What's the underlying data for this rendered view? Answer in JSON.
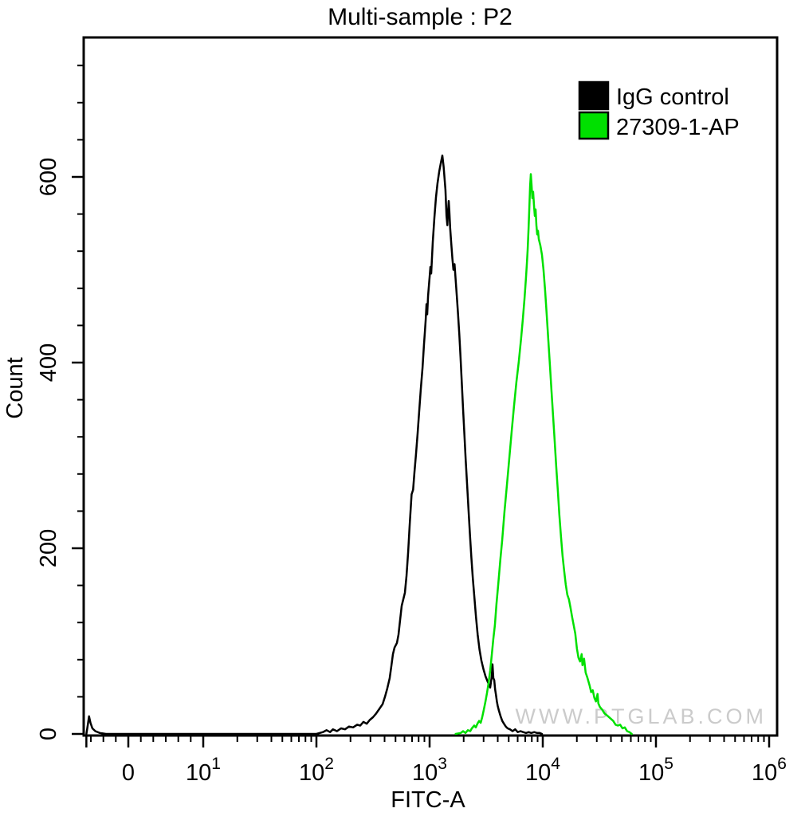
{
  "watermark": "WWW.PTGLAB.COM",
  "chart_data": {
    "type": "line",
    "subtype": "flow-cytometry-histogram-overlay",
    "title": "Multi-sample : P2",
    "xlabel": "FITC-A",
    "ylabel": "Count",
    "x_scale": "logicle (linear near 0, logarithmic 10 to 10^6)",
    "ylim": [
      0,
      750
    ],
    "y_major_ticks": [
      0,
      200,
      400,
      600
    ],
    "y_minor_step": 40,
    "x_major_ticks": [
      {
        "value": -5.6,
        "label": ""
      },
      {
        "value": 0,
        "label": "0"
      },
      {
        "value": 10,
        "base": "10",
        "exp": "1"
      },
      {
        "value": 100,
        "base": "10",
        "exp": "2"
      },
      {
        "value": 1000,
        "base": "10",
        "exp": "3"
      },
      {
        "value": 10000,
        "base": "10",
        "exp": "4"
      },
      {
        "value": 100000,
        "base": "10",
        "exp": "5"
      },
      {
        "value": 1000000,
        "base": "10",
        "exp": "6"
      }
    ],
    "legend_position": "top-right",
    "grid": false,
    "series": [
      {
        "name": "IgG control",
        "color": "#000000",
        "peak_x": 1300,
        "peak_count": 623,
        "points": [
          [
            -5.6,
            0
          ],
          [
            -5.4,
            10
          ],
          [
            -5.25,
            19
          ],
          [
            -5.05,
            12
          ],
          [
            -4.8,
            6
          ],
          [
            -4.4,
            3
          ],
          [
            -3.8,
            1
          ],
          [
            -3.0,
            0
          ],
          [
            0,
            0
          ],
          [
            50,
            0
          ],
          [
            100,
            0
          ],
          [
            114,
            2
          ],
          [
            123,
            4
          ],
          [
            132,
            2
          ],
          [
            140,
            5
          ],
          [
            152,
            3
          ],
          [
            165,
            6
          ],
          [
            179,
            5
          ],
          [
            194,
            8
          ],
          [
            211,
            7
          ],
          [
            229,
            10
          ],
          [
            244,
            9
          ],
          [
            260,
            13
          ],
          [
            278,
            11
          ],
          [
            296,
            15
          ],
          [
            316,
            18
          ],
          [
            337,
            22
          ],
          [
            360,
            27
          ],
          [
            384,
            32
          ],
          [
            403,
            40
          ],
          [
            423,
            49
          ],
          [
            444,
            60
          ],
          [
            459,
            73
          ],
          [
            474,
            86
          ],
          [
            490,
            93
          ],
          [
            514,
            98
          ],
          [
            531,
            107
          ],
          [
            548,
            122
          ],
          [
            567,
            138
          ],
          [
            586,
            145
          ],
          [
            605,
            152
          ],
          [
            625,
            170
          ],
          [
            646,
            196
          ],
          [
            667,
            225
          ],
          [
            693,
            258
          ],
          [
            715,
            263
          ],
          [
            735,
            282
          ],
          [
            759,
            302
          ],
          [
            784,
            324
          ],
          [
            809,
            347
          ],
          [
            837,
            372
          ],
          [
            865,
            394
          ],
          [
            893,
            420
          ],
          [
            908,
            432
          ],
          [
            923,
            446
          ],
          [
            938,
            463
          ],
          [
            953,
            452
          ],
          [
            969,
            472
          ],
          [
            1000,
            492
          ],
          [
            1016,
            503
          ],
          [
            1033,
            496
          ],
          [
            1067,
            530
          ],
          [
            1102,
            556
          ],
          [
            1139,
            578
          ],
          [
            1175,
            593
          ],
          [
            1216,
            606
          ],
          [
            1256,
            615
          ],
          [
            1297,
            623
          ],
          [
            1330,
            611
          ],
          [
            1380,
            586
          ],
          [
            1410,
            558
          ],
          [
            1435,
            548
          ],
          [
            1455,
            562
          ],
          [
            1475,
            574
          ],
          [
            1495,
            563
          ],
          [
            1520,
            545
          ],
          [
            1555,
            528
          ],
          [
            1590,
            512
          ],
          [
            1625,
            500
          ],
          [
            1660,
            506
          ],
          [
            1700,
            489
          ],
          [
            1740,
            471
          ],
          [
            1785,
            452
          ],
          [
            1830,
            430
          ],
          [
            1875,
            406
          ],
          [
            1925,
            378
          ],
          [
            1975,
            350
          ],
          [
            2030,
            322
          ],
          [
            2085,
            295
          ],
          [
            2145,
            268
          ],
          [
            2205,
            242
          ],
          [
            2270,
            215
          ],
          [
            2340,
            190
          ],
          [
            2410,
            168
          ],
          [
            2490,
            146
          ],
          [
            2570,
            126
          ],
          [
            2660,
            107
          ],
          [
            2760,
            91
          ],
          [
            2870,
            79
          ],
          [
            2990,
            70
          ],
          [
            3120,
            62
          ],
          [
            3266,
            56
          ],
          [
            3428,
            50
          ],
          [
            3540,
            62
          ],
          [
            3597,
            75
          ],
          [
            3660,
            60
          ],
          [
            3725,
            58
          ],
          [
            3790,
            48
          ],
          [
            3860,
            42
          ],
          [
            3930,
            35
          ],
          [
            4000,
            30
          ],
          [
            4100,
            25
          ],
          [
            4240,
            19
          ],
          [
            4390,
            14
          ],
          [
            4540,
            11
          ],
          [
            4710,
            8
          ],
          [
            4890,
            6
          ],
          [
            5130,
            5
          ],
          [
            5410,
            3
          ],
          [
            5710,
            5
          ],
          [
            6010,
            2
          ],
          [
            6360,
            3
          ],
          [
            6710,
            2
          ],
          [
            7110,
            1
          ],
          [
            7510,
            2
          ],
          [
            7910,
            1
          ],
          [
            8410,
            2
          ],
          [
            8910,
            1
          ],
          [
            9410,
            1
          ],
          [
            9840,
            0
          ]
        ]
      },
      {
        "name": "27309-1-AP",
        "color": "#00E000",
        "peak_x": 7800,
        "peak_count": 603,
        "points": [
          [
            1700,
            0
          ],
          [
            1884,
            1
          ],
          [
            1975,
            3
          ],
          [
            2075,
            1
          ],
          [
            2178,
            4
          ],
          [
            2286,
            3
          ],
          [
            2360,
            6
          ],
          [
            2478,
            9
          ],
          [
            2560,
            7
          ],
          [
            2647,
            11
          ],
          [
            2736,
            14
          ],
          [
            2829,
            12
          ],
          [
            2917,
            18
          ],
          [
            3014,
            26
          ],
          [
            3115,
            35
          ],
          [
            3215,
            44
          ],
          [
            3321,
            55
          ],
          [
            3428,
            68
          ],
          [
            3540,
            85
          ],
          [
            3655,
            102
          ],
          [
            3772,
            117
          ],
          [
            3896,
            140
          ],
          [
            4036,
            160
          ],
          [
            4236,
            190
          ],
          [
            4375,
            208
          ],
          [
            4590,
            240
          ],
          [
            4820,
            268
          ],
          [
            5050,
            296
          ],
          [
            5310,
            326
          ],
          [
            5570,
            353
          ],
          [
            5850,
            379
          ],
          [
            6140,
            401
          ],
          [
            6430,
            426
          ],
          [
            6660,
            446
          ],
          [
            6890,
            468
          ],
          [
            7100,
            491
          ],
          [
            7230,
            506
          ],
          [
            7350,
            521
          ],
          [
            7480,
            543
          ],
          [
            7600,
            566
          ],
          [
            7730,
            590
          ],
          [
            7835,
            603
          ],
          [
            7960,
            592
          ],
          [
            8090,
            577
          ],
          [
            8220,
            584
          ],
          [
            8375,
            568
          ],
          [
            8500,
            558
          ],
          [
            8640,
            565
          ],
          [
            8790,
            548
          ],
          [
            8930,
            538
          ],
          [
            9080,
            542
          ],
          [
            9220,
            533
          ],
          [
            9520,
            526
          ],
          [
            9840,
            516
          ],
          [
            10150,
            500
          ],
          [
            10480,
            478
          ],
          [
            10830,
            452
          ],
          [
            11180,
            425
          ],
          [
            11550,
            398
          ],
          [
            11930,
            370
          ],
          [
            12320,
            343
          ],
          [
            12730,
            316
          ],
          [
            13140,
            289
          ],
          [
            13580,
            262
          ],
          [
            14020,
            236
          ],
          [
            14490,
            212
          ],
          [
            14960,
            192
          ],
          [
            15450,
            176
          ],
          [
            15960,
            161
          ],
          [
            16490,
            150
          ],
          [
            17030,
            145
          ],
          [
            17590,
            136
          ],
          [
            18170,
            126
          ],
          [
            18770,
            117
          ],
          [
            19380,
            108
          ],
          [
            20020,
            92
          ],
          [
            20680,
            82
          ],
          [
            21360,
            78
          ],
          [
            22060,
            86
          ],
          [
            22420,
            74
          ],
          [
            23160,
            81
          ],
          [
            23920,
            66
          ],
          [
            24700,
            61
          ],
          [
            25930,
            52
          ],
          [
            26780,
            45
          ],
          [
            27650,
            47
          ],
          [
            28560,
            39
          ],
          [
            29500,
            35
          ],
          [
            30470,
            43
          ],
          [
            30960,
            33
          ],
          [
            31980,
            29
          ],
          [
            33550,
            26
          ],
          [
            35200,
            22
          ],
          [
            36930,
            20
          ],
          [
            39340,
            17
          ],
          [
            41900,
            14
          ],
          [
            43920,
            10
          ],
          [
            46040,
            9
          ],
          [
            48270,
            10
          ],
          [
            50600,
            6
          ],
          [
            53040,
            7
          ],
          [
            55600,
            3
          ],
          [
            58290,
            2
          ],
          [
            61100,
            0
          ]
        ]
      }
    ]
  }
}
